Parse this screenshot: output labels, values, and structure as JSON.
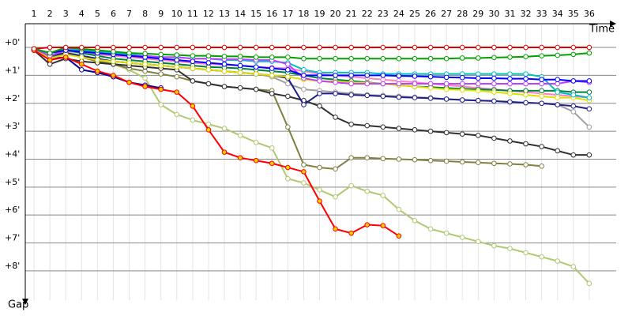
{
  "chart_data": {
    "type": "line",
    "x_label": "Time",
    "y_label": "Gap",
    "x": [
      1,
      2,
      3,
      4,
      5,
      6,
      7,
      8,
      9,
      10,
      11,
      12,
      13,
      14,
      15,
      16,
      17,
      18,
      19,
      20,
      21,
      22,
      23,
      24,
      25,
      26,
      27,
      28,
      29,
      30,
      31,
      32,
      33,
      34,
      35,
      36
    ],
    "xticks": [
      1,
      2,
      3,
      4,
      5,
      6,
      7,
      8,
      9,
      10,
      11,
      12,
      13,
      14,
      15,
      16,
      17,
      18,
      19,
      20,
      21,
      22,
      23,
      24,
      25,
      26,
      27,
      28,
      29,
      30,
      31,
      32,
      33,
      34,
      35,
      36
    ],
    "xlim": [
      0.45,
      37.7
    ],
    "ylim": [
      -0.85,
      9.05
    ],
    "y_inverted": true,
    "grid": true,
    "yticks": [
      {
        "value": 0,
        "label": "+0'"
      },
      {
        "value": 1,
        "label": "+1'"
      },
      {
        "value": 2,
        "label": "+2'"
      },
      {
        "value": 3,
        "label": "+3'"
      },
      {
        "value": 4,
        "label": "+4'"
      },
      {
        "value": 5,
        "label": "+5'"
      },
      {
        "value": 6,
        "label": "+6'"
      },
      {
        "value": 7,
        "label": "+7'"
      },
      {
        "value": 8,
        "label": "+8'"
      }
    ],
    "series": [
      {
        "color": "#a0a0a0",
        "marker_fill": "#ffffff",
        "values": [
          0.05,
          0.3,
          0.2,
          0.3,
          0.4,
          0.5,
          0.55,
          0.6,
          0.65,
          0.7,
          0.75,
          0.8,
          0.85,
          0.9,
          0.95,
          1.05,
          1.3,
          1.5,
          1.55,
          1.6,
          1.65,
          1.7,
          1.72,
          1.75,
          1.78,
          1.8,
          1.85,
          1.88,
          1.9,
          1.92,
          1.95,
          1.98,
          2.0,
          2.05,
          2.3,
          2.85
        ]
      },
      {
        "color": "#b0c870",
        "marker_fill": "#ffffff",
        "values": [
          0.1,
          0.3,
          0.15,
          0.3,
          0.45,
          0.6,
          0.8,
          1.1,
          2.05,
          2.4,
          2.6,
          2.75,
          2.9,
          3.15,
          3.4,
          3.6,
          4.7,
          4.85,
          5.1,
          5.35,
          4.95,
          5.15,
          5.3,
          5.8,
          6.2,
          6.5,
          6.65,
          6.8,
          6.95,
          7.1,
          7.2,
          7.35,
          7.5,
          7.65,
          7.85,
          8.45
        ]
      },
      {
        "color": "#808040",
        "marker_fill": "#ffffff",
        "values": [
          0.1,
          0.35,
          0.2,
          0.35,
          0.5,
          0.6,
          0.75,
          0.85,
          0.95,
          1.05,
          1.2,
          1.3,
          1.4,
          1.45,
          1.5,
          1.55,
          2.85,
          4.2,
          4.3,
          4.35,
          3.95,
          3.95,
          3.98,
          4.0,
          4.02,
          4.05,
          4.07,
          4.1,
          4.12,
          4.15,
          4.17,
          4.2,
          4.25,
          null,
          null,
          null
        ]
      },
      {
        "color": "#303030",
        "marker_fill": "#ffffff",
        "values": [
          0.1,
          0.6,
          0.4,
          0.5,
          0.55,
          0.6,
          0.65,
          0.7,
          0.75,
          0.8,
          1.2,
          1.3,
          1.4,
          1.45,
          1.5,
          1.65,
          1.75,
          1.9,
          2.1,
          2.5,
          2.75,
          2.8,
          2.85,
          2.9,
          2.95,
          3.0,
          3.05,
          3.1,
          3.15,
          3.25,
          3.35,
          3.45,
          3.55,
          3.7,
          3.85,
          3.85
        ]
      },
      {
        "color": "#20208a",
        "marker_fill": "#ffffff",
        "values": [
          0.05,
          0.3,
          0.2,
          0.3,
          0.4,
          0.5,
          0.55,
          0.6,
          0.65,
          0.7,
          0.75,
          0.8,
          0.85,
          0.9,
          0.95,
          1.0,
          1.1,
          2.05,
          1.65,
          1.65,
          1.7,
          1.72,
          1.75,
          1.78,
          1.8,
          1.82,
          1.85,
          1.88,
          1.9,
          1.92,
          1.95,
          1.98,
          2.0,
          2.05,
          2.1,
          2.2
        ]
      },
      {
        "color": "#0000a0",
        "marker_fill": "#ffffff",
        "values": [
          0.1,
          0.4,
          0.35,
          0.8,
          0.9,
          1.05,
          1.25,
          1.35,
          1.45,
          null,
          null,
          null,
          null,
          null,
          null,
          null,
          null,
          null,
          null,
          null,
          null,
          null,
          null,
          null,
          null,
          null,
          null,
          null,
          null,
          null,
          null,
          null,
          null,
          null,
          null,
          null
        ]
      },
      {
        "color": "#ff80c0",
        "marker_fill": "#ffffff",
        "values": [
          0.05,
          0.3,
          0.1,
          0.2,
          0.25,
          0.3,
          0.35,
          0.4,
          0.45,
          0.5,
          0.55,
          0.6,
          0.62,
          0.65,
          0.7,
          0.72,
          0.75,
          0.85,
          0.95,
          1.0,
          1.05,
          1.1,
          1.15,
          1.2,
          1.25,
          1.3,
          1.35,
          1.4,
          1.45,
          1.5,
          1.55,
          1.6,
          1.65,
          1.7,
          1.75,
          1.8
        ]
      },
      {
        "color": "#008040",
        "marker_fill": "#ffffff",
        "values": [
          0.05,
          0.3,
          0.1,
          0.2,
          0.3,
          0.4,
          0.45,
          0.5,
          0.55,
          0.6,
          0.65,
          0.7,
          0.72,
          0.75,
          0.8,
          0.85,
          0.9,
          1.0,
          1.1,
          1.15,
          1.2,
          1.25,
          1.3,
          1.35,
          1.4,
          1.42,
          1.45,
          1.48,
          1.5,
          1.52,
          1.55,
          1.55,
          1.55,
          1.55,
          1.6,
          1.6
        ]
      },
      {
        "color": "#e0e000",
        "marker_fill": "#ffffff",
        "values": [
          0.05,
          0.4,
          0.25,
          0.35,
          0.45,
          0.5,
          0.55,
          0.6,
          0.65,
          0.7,
          0.75,
          0.8,
          0.85,
          0.9,
          0.95,
          1.0,
          1.05,
          1.15,
          1.2,
          1.22,
          1.25,
          1.27,
          1.3,
          1.35,
          1.4,
          1.45,
          1.5,
          1.52,
          1.55,
          1.6,
          1.65,
          1.7,
          1.75,
          1.8,
          1.8,
          1.9
        ]
      },
      {
        "color": "#00c0c0",
        "marker_fill": "#ffffff",
        "values": [
          0.05,
          0.2,
          0.05,
          0.1,
          0.15,
          0.2,
          0.25,
          0.3,
          0.35,
          0.35,
          0.4,
          0.4,
          0.45,
          0.45,
          0.5,
          0.5,
          0.55,
          0.8,
          0.9,
          0.9,
          0.9,
          0.9,
          0.95,
          0.95,
          0.95,
          0.95,
          0.95,
          0.95,
          0.95,
          0.95,
          0.95,
          0.95,
          1.05,
          1.6,
          1.7,
          1.8
        ]
      },
      {
        "color": "#c040ff",
        "marker_fill": "#ffffff",
        "values": [
          0.05,
          0.3,
          0.1,
          0.15,
          0.2,
          0.25,
          0.3,
          0.3,
          0.35,
          0.35,
          0.4,
          0.4,
          0.42,
          0.42,
          0.45,
          0.45,
          0.6,
          1.1,
          1.2,
          1.25,
          1.3,
          1.3,
          1.3,
          1.3,
          1.3,
          1.3,
          1.3,
          1.3,
          1.3,
          1.3,
          1.3,
          1.3,
          1.3,
          1.3,
          1.2,
          1.25
        ]
      },
      {
        "color": "#0000ff",
        "marker_fill": "#ffffff",
        "values": [
          0.05,
          0.2,
          0.1,
          0.15,
          0.2,
          0.25,
          0.3,
          0.35,
          0.4,
          0.45,
          0.5,
          0.55,
          0.6,
          0.65,
          0.7,
          0.75,
          0.8,
          1.0,
          1.0,
          1.0,
          1.0,
          1.0,
          1.0,
          1.02,
          1.03,
          1.05,
          1.07,
          1.08,
          1.1,
          1.1,
          1.12,
          1.12,
          1.15,
          1.15,
          1.2,
          1.2
        ]
      },
      {
        "color": "#00a000",
        "marker_fill": "#ffffff",
        "values": [
          0.05,
          0.2,
          0,
          0.05,
          0.1,
          0.15,
          0.2,
          0.22,
          0.25,
          0.27,
          0.3,
          0.3,
          0.32,
          0.32,
          0.35,
          0.35,
          0.35,
          0.4,
          0.4,
          0.4,
          0.4,
          0.4,
          0.4,
          0.4,
          0.4,
          0.4,
          0.4,
          0.38,
          0.38,
          0.36,
          0.35,
          0.33,
          0.3,
          0.28,
          0.25,
          0.2
        ]
      },
      {
        "color": "#ff0000",
        "marker_fill": "#ffd000",
        "values": [
          0.1,
          0.45,
          0.35,
          0.6,
          0.85,
          1.0,
          1.25,
          1.4,
          1.5,
          1.6,
          2.1,
          2.95,
          3.75,
          3.95,
          4.05,
          4.15,
          4.3,
          4.45,
          5.5,
          6.5,
          6.65,
          6.35,
          6.38,
          6.75,
          null,
          null,
          null,
          null,
          null,
          null,
          null,
          null,
          null,
          null,
          null,
          null
        ]
      },
      {
        "color": "#e00000",
        "marker_fill": "#ffffff",
        "values": [
          0.05,
          0,
          0,
          0,
          0,
          0,
          0,
          0,
          0,
          0,
          0,
          0,
          0,
          0,
          0,
          0,
          0,
          0,
          0,
          0,
          0,
          0,
          0,
          0,
          0,
          0,
          0,
          0,
          0,
          0,
          0,
          0,
          0,
          0,
          0,
          0
        ]
      }
    ]
  }
}
